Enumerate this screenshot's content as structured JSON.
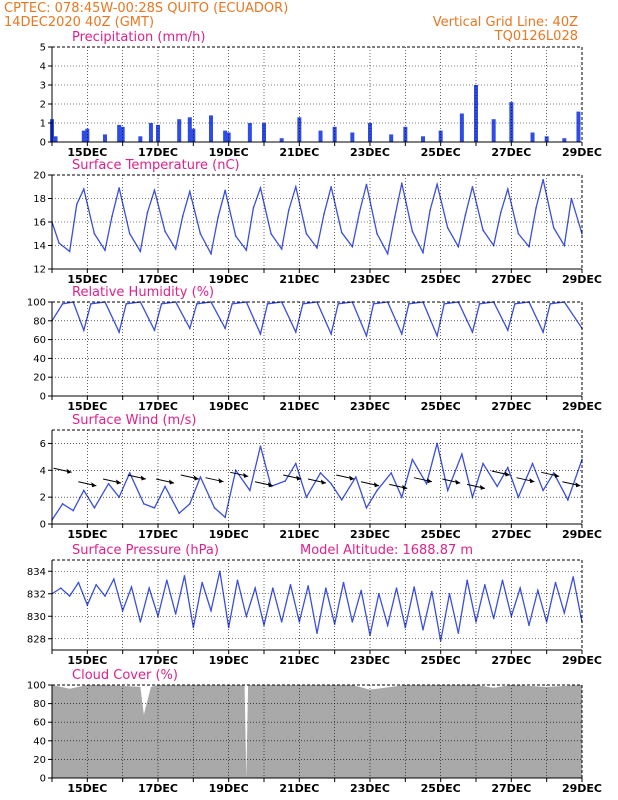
{
  "header": {
    "line1": "CPTEC:   078:45W-00:28S   QUITO (ECUADOR)",
    "line2": "14DEC2020 40Z (GMT)",
    "right1": "Vertical Grid Line: 40Z",
    "right2": "TQ0126L028"
  },
  "x_tick_labels": [
    "15DEC",
    "17DEC",
    "19DEC",
    "21DEC",
    "23DEC",
    "25DEC",
    "27DEC",
    "29DEC"
  ],
  "colors": {
    "line": "#3a4ee0",
    "bar": "#2f4ce6",
    "cloud": "#a9a9a9",
    "title": "#e0218a",
    "header": "#e87722",
    "grid": "#000000"
  },
  "chart_data": [
    {
      "type": "bar",
      "title": "Precipitation (mm/h)",
      "ylim": [
        0,
        5
      ],
      "yticks": [
        0,
        1,
        2,
        3,
        4,
        5
      ],
      "x": {
        "start": "14DEC2020",
        "end": "29DEC2020",
        "tick_labels": [
          "15DEC",
          "17DEC",
          "19DEC",
          "21DEC",
          "23DEC",
          "25DEC",
          "27DEC",
          "29DEC"
        ]
      },
      "series": [
        {
          "x": [
            14.0,
            14.1,
            14.5,
            14.9,
            15.0,
            15.5,
            15.9,
            16.0,
            16.5,
            16.8,
            17.0,
            17.6,
            17.9,
            18.0,
            18.5,
            18.9,
            19.0,
            19.6,
            20.0,
            20.5,
            21.0,
            21.6,
            22.0,
            22.5,
            23.0,
            23.6,
            24.0,
            24.5,
            25.0,
            25.6,
            26.0,
            26.5,
            27.0,
            27.6,
            28.0,
            28.5,
            28.9
          ],
          "values": [
            1.2,
            0.3,
            0.0,
            0.6,
            0.7,
            0.4,
            0.9,
            0.8,
            0.3,
            1.0,
            0.9,
            1.2,
            1.3,
            0.7,
            1.4,
            0.6,
            0.5,
            1.0,
            1.0,
            0.2,
            1.3,
            0.6,
            0.8,
            0.5,
            1.0,
            0.4,
            0.8,
            0.3,
            0.6,
            1.5,
            3.0,
            1.2,
            2.1,
            0.5,
            0.3,
            0.2,
            1.6
          ]
        }
      ]
    },
    {
      "type": "line",
      "title": "Surface Temperature (nC)",
      "ylim": [
        12,
        20
      ],
      "yticks": [
        12,
        14,
        16,
        18,
        20
      ],
      "x": {
        "start": "14DEC2020",
        "end": "29DEC2020",
        "tick_labels": [
          "15DEC",
          "17DEC",
          "19DEC",
          "21DEC",
          "23DEC",
          "25DEC",
          "27DEC",
          "29DEC"
        ]
      },
      "series": [
        {
          "x": [
            14.0,
            14.2,
            14.5,
            14.7,
            14.9,
            15.2,
            15.5,
            15.7,
            15.9,
            16.2,
            16.5,
            16.7,
            16.9,
            17.2,
            17.5,
            17.7,
            17.9,
            18.2,
            18.5,
            18.7,
            18.9,
            19.2,
            19.5,
            19.7,
            19.9,
            20.2,
            20.5,
            20.7,
            20.9,
            21.2,
            21.5,
            21.7,
            21.9,
            22.2,
            22.5,
            22.7,
            22.9,
            23.2,
            23.5,
            23.7,
            23.9,
            24.2,
            24.5,
            24.7,
            24.9,
            25.2,
            25.5,
            25.7,
            25.9,
            26.2,
            26.5,
            26.7,
            26.9,
            27.2,
            27.5,
            27.7,
            27.9,
            28.2,
            28.5,
            28.7,
            29.0
          ],
          "values": [
            16.0,
            14.2,
            13.5,
            17.5,
            18.8,
            15.0,
            13.6,
            16.5,
            18.9,
            15.0,
            13.5,
            16.8,
            18.7,
            15.2,
            13.7,
            16.5,
            18.6,
            15.0,
            13.3,
            16.4,
            18.7,
            14.8,
            13.6,
            17.2,
            18.9,
            15.0,
            13.7,
            17.0,
            19.0,
            15.0,
            13.8,
            16.7,
            19.0,
            15.1,
            13.9,
            16.8,
            19.2,
            15.0,
            13.3,
            16.4,
            19.3,
            15.2,
            13.4,
            17.0,
            19.2,
            15.5,
            13.9,
            16.6,
            19.0,
            15.3,
            14.0,
            16.8,
            18.8,
            15.0,
            13.9,
            17.2,
            19.6,
            15.5,
            14.0,
            18.0,
            15.0
          ]
        }
      ]
    },
    {
      "type": "line",
      "title": "Relative Humidity (%)",
      "ylim": [
        0,
        100
      ],
      "yticks": [
        0,
        20,
        40,
        60,
        80,
        100
      ],
      "x": {
        "start": "14DEC2020",
        "end": "29DEC2020",
        "tick_labels": [
          "15DEC",
          "17DEC",
          "19DEC",
          "21DEC",
          "23DEC",
          "25DEC",
          "27DEC",
          "29DEC"
        ]
      },
      "series": [
        {
          "x": [
            14.0,
            14.3,
            14.6,
            14.9,
            15.1,
            15.5,
            15.9,
            16.1,
            16.5,
            16.9,
            17.1,
            17.5,
            17.9,
            18.1,
            18.5,
            18.9,
            19.1,
            19.5,
            19.9,
            20.1,
            20.5,
            20.9,
            21.1,
            21.5,
            21.9,
            22.1,
            22.5,
            22.9,
            23.1,
            23.5,
            23.9,
            24.1,
            24.5,
            24.9,
            25.1,
            25.5,
            25.9,
            26.1,
            26.5,
            26.9,
            27.1,
            27.5,
            27.9,
            28.1,
            28.5,
            29.0
          ],
          "values": [
            80,
            98,
            100,
            70,
            98,
            100,
            68,
            98,
            100,
            70,
            98,
            100,
            72,
            98,
            100,
            72,
            98,
            100,
            66,
            98,
            100,
            68,
            98,
            100,
            66,
            98,
            100,
            64,
            98,
            100,
            66,
            98,
            100,
            64,
            98,
            100,
            68,
            98,
            100,
            70,
            98,
            100,
            68,
            98,
            100,
            72
          ]
        }
      ]
    },
    {
      "type": "line",
      "title": "Surface Wind (m/s)",
      "ylim": [
        0,
        7
      ],
      "yticks": [
        0,
        2,
        4,
        6
      ],
      "x": {
        "start": "14DEC2020",
        "end": "29DEC2020",
        "tick_labels": [
          "15DEC",
          "17DEC",
          "19DEC",
          "21DEC",
          "23DEC",
          "25DEC",
          "27DEC",
          "29DEC"
        ]
      },
      "series": [
        {
          "x": [
            14.0,
            14.3,
            14.6,
            14.9,
            15.2,
            15.6,
            15.9,
            16.2,
            16.6,
            16.9,
            17.2,
            17.6,
            17.9,
            18.2,
            18.6,
            18.9,
            19.2,
            19.6,
            19.9,
            20.2,
            20.6,
            20.9,
            21.2,
            21.6,
            21.9,
            22.2,
            22.6,
            22.9,
            23.2,
            23.6,
            23.9,
            24.2,
            24.6,
            24.9,
            25.2,
            25.6,
            25.9,
            26.2,
            26.6,
            26.9,
            27.2,
            27.6,
            27.9,
            28.2,
            28.6,
            29.0
          ],
          "values": [
            0.3,
            1.5,
            1.0,
            2.5,
            1.2,
            3.0,
            2.0,
            3.8,
            1.5,
            1.2,
            2.8,
            0.8,
            1.5,
            3.5,
            1.2,
            0.5,
            4.0,
            2.5,
            5.8,
            2.8,
            3.2,
            4.5,
            2.0,
            3.8,
            3.0,
            1.8,
            3.5,
            1.2,
            2.5,
            3.8,
            2.0,
            4.8,
            3.0,
            6.0,
            2.5,
            5.2,
            2.0,
            4.5,
            2.8,
            4.2,
            2.0,
            4.5,
            2.5,
            3.8,
            1.8,
            4.8
          ]
        }
      ],
      "arrows": [
        {
          "x": 14.3,
          "y": 4.0
        },
        {
          "x": 15.0,
          "y": 3.0
        },
        {
          "x": 15.7,
          "y": 3.2
        },
        {
          "x": 16.4,
          "y": 3.5
        },
        {
          "x": 17.2,
          "y": 3.2
        },
        {
          "x": 17.9,
          "y": 3.5
        },
        {
          "x": 18.6,
          "y": 3.3
        },
        {
          "x": 19.3,
          "y": 3.7
        },
        {
          "x": 20.0,
          "y": 3.0
        },
        {
          "x": 20.8,
          "y": 3.5
        },
        {
          "x": 21.5,
          "y": 3.2
        },
        {
          "x": 22.3,
          "y": 3.5
        },
        {
          "x": 23.0,
          "y": 3.0
        },
        {
          "x": 23.8,
          "y": 2.8
        },
        {
          "x": 24.5,
          "y": 3.3
        },
        {
          "x": 25.3,
          "y": 3.2
        },
        {
          "x": 26.0,
          "y": 2.8
        },
        {
          "x": 26.7,
          "y": 3.8
        },
        {
          "x": 27.4,
          "y": 3.3
        },
        {
          "x": 28.1,
          "y": 3.7
        },
        {
          "x": 28.7,
          "y": 3.0
        }
      ]
    },
    {
      "type": "line",
      "title": "Surface Pressure (hPa)",
      "annotation": "Model Altitude: 1688.87 m",
      "ylim": [
        827,
        835
      ],
      "yticks": [
        828,
        830,
        832,
        834
      ],
      "x": {
        "start": "14DEC2020",
        "end": "29DEC2020",
        "tick_labels": [
          "15DEC",
          "17DEC",
          "19DEC",
          "21DEC",
          "23DEC",
          "25DEC",
          "27DEC",
          "29DEC"
        ]
      },
      "series": [
        {
          "x": [
            14.0,
            14.25,
            14.5,
            14.75,
            15.0,
            15.25,
            15.5,
            15.75,
            16.0,
            16.25,
            16.5,
            16.75,
            17.0,
            17.25,
            17.5,
            17.75,
            18.0,
            18.25,
            18.5,
            18.75,
            19.0,
            19.25,
            19.5,
            19.75,
            20.0,
            20.25,
            20.5,
            20.75,
            21.0,
            21.25,
            21.5,
            21.75,
            22.0,
            22.25,
            22.5,
            22.75,
            23.0,
            23.25,
            23.5,
            23.75,
            24.0,
            24.25,
            24.5,
            24.75,
            25.0,
            25.25,
            25.5,
            25.75,
            26.0,
            26.25,
            26.5,
            26.75,
            27.0,
            27.25,
            27.5,
            27.75,
            28.0,
            28.25,
            28.5,
            28.75,
            29.0
          ],
          "values": [
            832.0,
            832.5,
            831.8,
            833.0,
            831.0,
            832.8,
            831.8,
            833.3,
            830.5,
            832.6,
            829.5,
            832.5,
            830.0,
            833.2,
            830.2,
            833.6,
            829.0,
            833.0,
            830.5,
            834.0,
            829.0,
            833.2,
            830.0,
            832.5,
            829.2,
            832.5,
            829.5,
            832.8,
            829.5,
            832.7,
            828.5,
            832.5,
            829.3,
            833.0,
            829.5,
            832.3,
            828.3,
            832.0,
            829.2,
            832.5,
            829.0,
            832.6,
            828.8,
            832.2,
            827.8,
            832.0,
            828.5,
            833.2,
            829.5,
            832.8,
            829.8,
            833.2,
            830.0,
            832.5,
            829.2,
            832.3,
            829.5,
            833.0,
            830.3,
            833.5,
            829.5
          ]
        }
      ]
    },
    {
      "type": "area",
      "title": "Cloud Cover (%)",
      "ylim": [
        0,
        100
      ],
      "yticks": [
        0,
        20,
        40,
        60,
        80,
        100
      ],
      "x": {
        "start": "14DEC2020",
        "end": "29DEC2020",
        "tick_labels": [
          "15DEC",
          "17DEC",
          "19DEC",
          "21DEC",
          "23DEC",
          "25DEC",
          "27DEC",
          "29DEC"
        ]
      },
      "series": [
        {
          "x": [
            14.0,
            14.5,
            15.0,
            15.5,
            16.0,
            16.5,
            16.6,
            16.8,
            17.0,
            18.0,
            19.0,
            19.45,
            19.5,
            19.55,
            20.0,
            21.0,
            22.0,
            22.5,
            23.0,
            24.0,
            25.0,
            26.0,
            26.5,
            27.0,
            28.0,
            29.0
          ],
          "values": [
            100,
            96,
            100,
            100,
            99,
            98,
            68,
            98,
            100,
            100,
            100,
            100,
            0,
            100,
            100,
            100,
            100,
            100,
            95,
            100,
            100,
            100,
            97,
            100,
            98,
            100
          ]
        }
      ]
    }
  ]
}
